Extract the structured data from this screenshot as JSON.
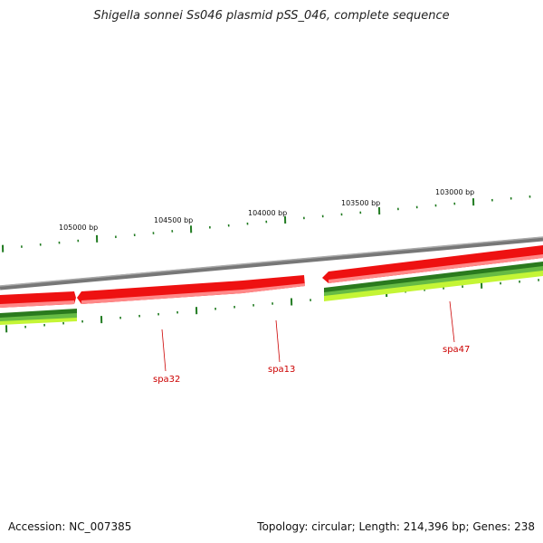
{
  "title": "Shigella sonnei Ss046 plasmid pSS_046, complete sequence",
  "footer": {
    "accession": "Accession: NC_007385",
    "summary": "Topology: circular; Length: 214,396 bp; Genes: 238"
  },
  "scale": {
    "tick_labels": [
      "105000 bp",
      "104500 bp",
      "104000 bp",
      "103500 bp",
      "103000 bp"
    ]
  },
  "genes": [
    {
      "name": "spa32"
    },
    {
      "name": "spa13"
    },
    {
      "name": "spa47"
    }
  ],
  "colors": {
    "backbone": "#888888",
    "gene_forward": "#ee1111",
    "gene_forward_light": "#ff7777",
    "track_dark_green": "#2a7a1e",
    "track_green": "#55b040",
    "track_lime": "#b8f030",
    "tick": "#1f7a1f",
    "label": "#cc0000"
  }
}
